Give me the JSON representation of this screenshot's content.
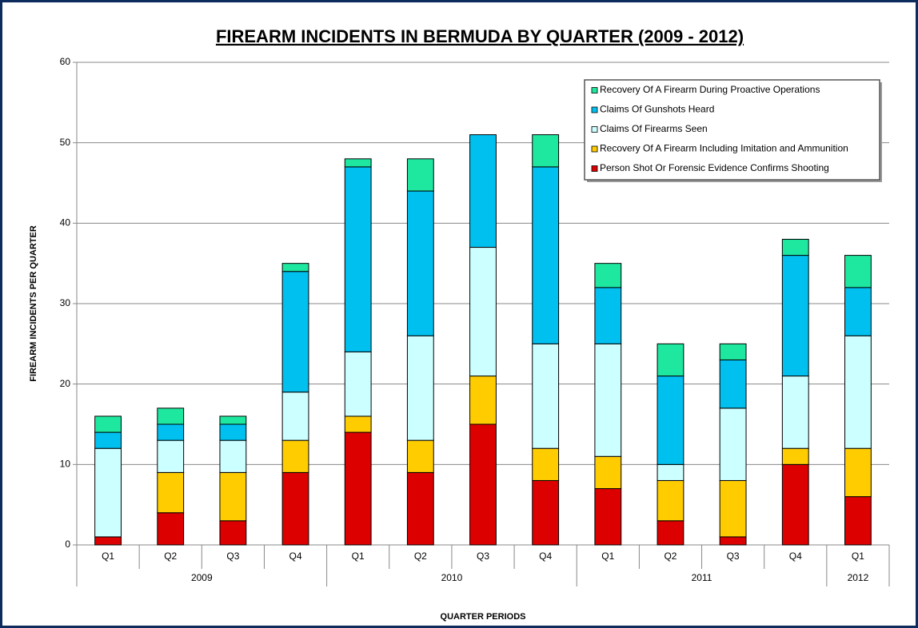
{
  "chart_data": {
    "type": "stacked_bar",
    "title": "FIREARM  INCIDENTS  IN  BERMUDA  BY  QUARTER  (2009 - 2012)",
    "x_label": "QUARTER PERIODS",
    "y_label": "FIREARM INCIDENTS PER QUARTER",
    "groups": [
      {
        "label": "2009",
        "categories": [
          "Q1",
          "Q2",
          "Q3",
          "Q4"
        ]
      },
      {
        "label": "2010",
        "categories": [
          "Q1",
          "Q2",
          "Q3",
          "Q4"
        ]
      },
      {
        "label": "2011",
        "categories": [
          "Q1",
          "Q2",
          "Q3",
          "Q4"
        ]
      },
      {
        "label": "2012",
        "categories": [
          "Q1"
        ]
      }
    ],
    "series": [
      {
        "name": "Person Shot Or Forensic Evidence Confirms Shooting",
        "color": "#dd0000",
        "values": [
          1,
          4,
          3,
          9,
          14,
          9,
          15,
          8,
          7,
          3,
          1,
          10,
          6
        ]
      },
      {
        "name": "Recovery Of A Firearm Including Imitation and Ammunition",
        "color": "#ffcc00",
        "values": [
          0,
          5,
          6,
          4,
          2,
          4,
          6,
          4,
          4,
          5,
          7,
          2,
          6
        ]
      },
      {
        "name": "Claims Of Firearms Seen",
        "color": "#ccffff",
        "values": [
          11,
          4,
          4,
          6,
          8,
          13,
          16,
          13,
          14,
          2,
          9,
          9,
          14
        ]
      },
      {
        "name": "Claims Of Gunshots Heard",
        "color": "#00c0f0",
        "values": [
          2,
          2,
          2,
          15,
          23,
          18,
          14,
          22,
          7,
          11,
          6,
          15,
          6
        ]
      },
      {
        "name": "Recovery Of A Firearm During Proactive Operations",
        "color": "#1ee8a0",
        "values": [
          2,
          2,
          1,
          1,
          1,
          4,
          0,
          4,
          3,
          4,
          2,
          2,
          4
        ]
      }
    ],
    "ylim": [
      0,
      60
    ],
    "yticks": [
      0,
      10,
      20,
      30,
      40,
      50,
      60
    ],
    "grid": true,
    "legend_position": "top-right"
  }
}
